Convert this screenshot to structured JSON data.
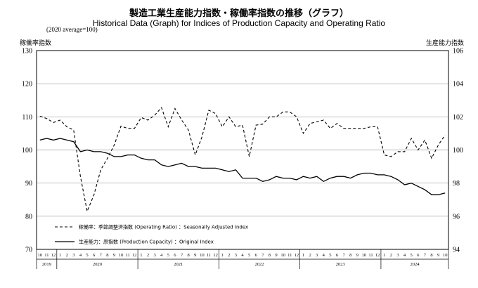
{
  "chart_data": {
    "type": "line",
    "title": "製造工業生産能力指数・稼働率指数の推移（グラフ）",
    "subtitle": "Historical Data (Graph) for Indices of Production Capacity and Operating Ratio",
    "note": "(2020 average=100)",
    "ylabel_left": "稼働率指数",
    "ylabel_right": "生産能力指数",
    "ylim_left": [
      70,
      130
    ],
    "yticks_left": [
      70,
      80,
      90,
      100,
      110,
      120,
      130
    ],
    "ylim_right": [
      94,
      106
    ],
    "yticks_right": [
      94,
      96,
      98,
      100,
      102,
      104,
      106
    ],
    "grid": true,
    "legend_position": "bottom-left",
    "x_months": [
      "10",
      "11",
      "12",
      "1",
      "2",
      "3",
      "4",
      "5",
      "6",
      "7",
      "8",
      "9",
      "10",
      "11",
      "12",
      "1",
      "2",
      "3",
      "4",
      "5",
      "6",
      "7",
      "8",
      "9",
      "10",
      "11",
      "12",
      "1",
      "2",
      "3",
      "4",
      "5",
      "6",
      "7",
      "8",
      "9",
      "10",
      "11",
      "12",
      "1",
      "2",
      "3",
      "4",
      "5",
      "6",
      "7",
      "8",
      "9",
      "10",
      "11",
      "12",
      "1",
      "2",
      "3",
      "4",
      "5",
      "6",
      "7",
      "8",
      "9",
      "10"
    ],
    "x_years": [
      {
        "label": "2019",
        "start": 0,
        "count": 3
      },
      {
        "label": "2020",
        "start": 3,
        "count": 12
      },
      {
        "label": "2021",
        "start": 15,
        "count": 12
      },
      {
        "label": "2022",
        "start": 27,
        "count": 12
      },
      {
        "label": "2023",
        "start": 39,
        "count": 12
      },
      {
        "label": "2024",
        "start": 51,
        "count": 10
      }
    ],
    "series": [
      {
        "name": "稼働率：季節調整済指数 (Operating Ratio) ：Seasonally Adjusted Index",
        "axis": "left",
        "style": "dashed",
        "values": [
          110.2,
          109.5,
          108.3,
          109.0,
          107.0,
          106.0,
          92.0,
          81.5,
          86.5,
          94.0,
          97.5,
          101.5,
          107.2,
          106.5,
          106.5,
          109.8,
          109.0,
          110.5,
          112.8,
          107.0,
          112.5,
          109.0,
          106.0,
          98.5,
          104.0,
          112.0,
          111.0,
          107.0,
          110.0,
          107.0,
          107.5,
          98.0,
          107.5,
          107.8,
          110.0,
          110.0,
          111.5,
          111.5,
          110.0,
          105.0,
          108.0,
          108.5,
          109.0,
          106.5,
          108.0,
          106.5,
          106.5,
          106.5,
          106.5,
          107.0,
          107.0,
          98.5,
          98.0,
          99.5,
          99.5,
          103.5,
          100.0,
          103.0,
          97.5,
          101.5,
          104.5
        ]
      },
      {
        "name": "生産能力：原指数 (Production Capacity) ：Original Index",
        "axis": "right",
        "style": "solid",
        "values": [
          100.6,
          100.7,
          100.6,
          100.7,
          100.6,
          100.5,
          99.9,
          100.0,
          99.9,
          99.9,
          99.8,
          99.6,
          99.6,
          99.7,
          99.7,
          99.5,
          99.4,
          99.4,
          99.1,
          99.0,
          99.1,
          99.2,
          99.0,
          99.0,
          98.9,
          98.9,
          98.9,
          98.8,
          98.7,
          98.8,
          98.3,
          98.3,
          98.3,
          98.1,
          98.2,
          98.4,
          98.3,
          98.3,
          98.2,
          98.4,
          98.3,
          98.4,
          98.1,
          98.3,
          98.4,
          98.4,
          98.3,
          98.5,
          98.6,
          98.6,
          98.5,
          98.5,
          98.4,
          98.2,
          97.9,
          98.0,
          97.8,
          97.6,
          97.3,
          97.3,
          97.4
        ]
      }
    ]
  }
}
